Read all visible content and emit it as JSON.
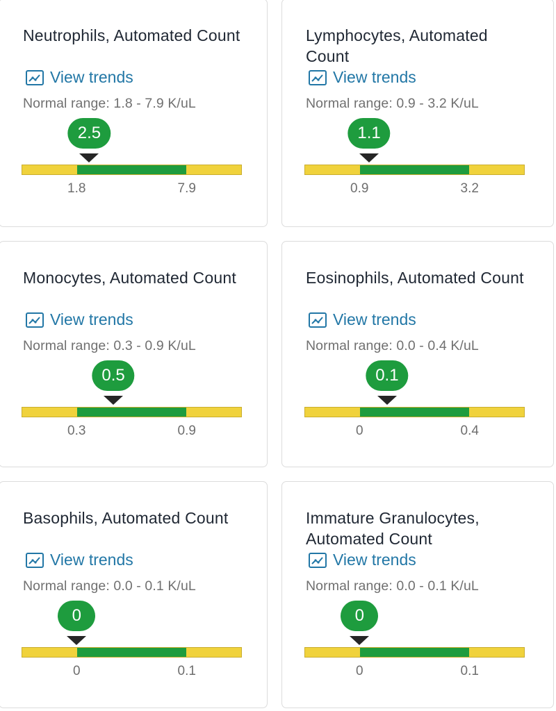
{
  "link_label": "View trends",
  "link_icon": "trend-chart-icon",
  "colors": {
    "normal": "#1e9c3e",
    "outside": "#f0d23c",
    "link": "#2277a6"
  },
  "cards": [
    {
      "title": "Neutrophils, Automated Count",
      "range_text": "Normal range: 1.8 - 7.9 K/uL",
      "value_text": "2.5",
      "low_label": "1.8",
      "high_label": "7.9",
      "low": 1.8,
      "high": 7.9,
      "value": 2.5
    },
    {
      "title": "Lymphocytes, Automated Count",
      "range_text": "Normal range: 0.9 - 3.2 K/uL",
      "value_text": "1.1",
      "low_label": "0.9",
      "high_label": "3.2",
      "low": 0.9,
      "high": 3.2,
      "value": 1.1
    },
    {
      "title": "Monocytes, Automated Count",
      "range_text": "Normal range: 0.3 - 0.9 K/uL",
      "value_text": "0.5",
      "low_label": "0.3",
      "high_label": "0.9",
      "low": 0.3,
      "high": 0.9,
      "value": 0.5
    },
    {
      "title": "Eosinophils, Automated Count",
      "range_text": "Normal range: 0.0 - 0.4 K/uL",
      "value_text": "0.1",
      "low_label": "0",
      "high_label": "0.4",
      "low": 0.0,
      "high": 0.4,
      "value": 0.1
    },
    {
      "title": "Basophils, Automated Count",
      "range_text": "Normal range: 0.0 - 0.1 K/uL",
      "value_text": "0",
      "low_label": "0",
      "high_label": "0.1",
      "low": 0.0,
      "high": 0.1,
      "value": 0
    },
    {
      "title": "Immature Granulocytes, Automated Count",
      "range_text": "Normal range: 0.0 - 0.1 K/uL",
      "value_text": "0",
      "low_label": "0",
      "high_label": "0.1",
      "low": 0.0,
      "high": 0.1,
      "value": 0
    }
  ]
}
